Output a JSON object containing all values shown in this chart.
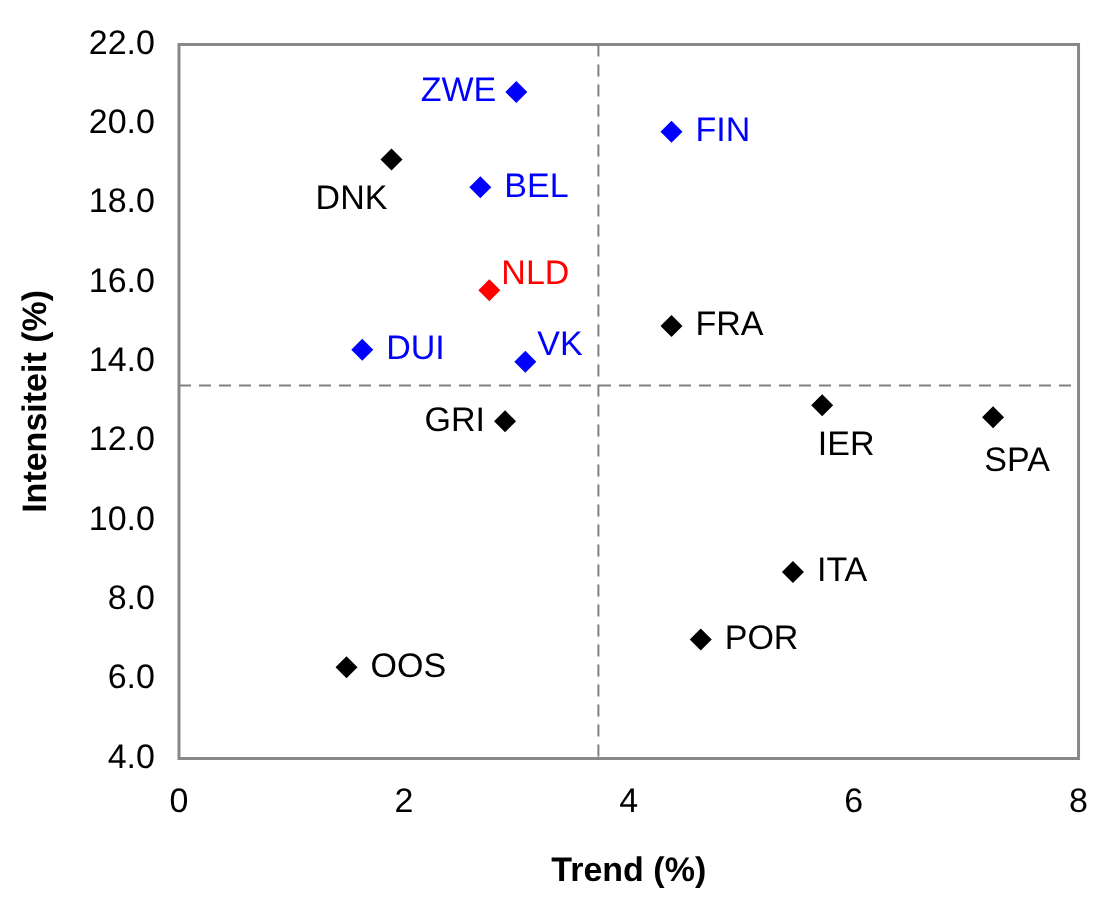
{
  "chart_data": {
    "type": "scatter",
    "xlabel": "Trend (%)",
    "ylabel": "Intensiteit (%)",
    "x": [
      3.0,
      4.38,
      1.89,
      2.68,
      2.76,
      4.38,
      1.63,
      3.08,
      2.9,
      5.72,
      7.24,
      5.46,
      4.64,
      1.49
    ],
    "values": [
      20.8,
      19.8,
      19.1,
      18.4,
      15.8,
      14.9,
      14.3,
      14.0,
      12.5,
      12.9,
      12.6,
      8.7,
      7.0,
      6.3
    ],
    "colors": [
      "#0000ff",
      "#0000ff",
      "#000000",
      "#0000ff",
      "#ff0000",
      "#000000",
      "#0000ff",
      "#0000ff",
      "#000000",
      "#000000",
      "#000000",
      "#000000",
      "#000000",
      "#000000"
    ],
    "value_labels": [
      "ZWE",
      "FIN",
      "DNK",
      "BEL",
      "NLD",
      "FRA",
      "DUI",
      "VK",
      "GRI",
      "IER",
      "SPA",
      "ITA",
      "POR",
      "OOS"
    ],
    "marker": "diamond",
    "xlim": [
      0,
      8
    ],
    "xticks": [
      0,
      2,
      4,
      6,
      8
    ],
    "ylim": [
      4,
      22
    ],
    "yticks": [
      {
        "value": 4,
        "label": "4.0"
      },
      {
        "value": 6,
        "label": "6.0"
      },
      {
        "value": 8,
        "label": "8.0"
      },
      {
        "value": 10,
        "label": "10.0"
      },
      {
        "value": 12,
        "label": "12.0"
      },
      {
        "value": 14,
        "label": "14.0"
      },
      {
        "value": 16,
        "label": "16.0"
      },
      {
        "value": 18,
        "label": "18.0"
      },
      {
        "value": 20,
        "label": "20.0"
      },
      {
        "value": 22,
        "label": "22.0"
      }
    ],
    "ref_lines": [
      {
        "axis": "x",
        "value": 3.73,
        "color": "#808080",
        "line_style": "dashed"
      },
      {
        "axis": "y",
        "value": 13.4,
        "color": "#808080",
        "line_style": "dashed"
      }
    ],
    "grid": false,
    "legend": false
  }
}
